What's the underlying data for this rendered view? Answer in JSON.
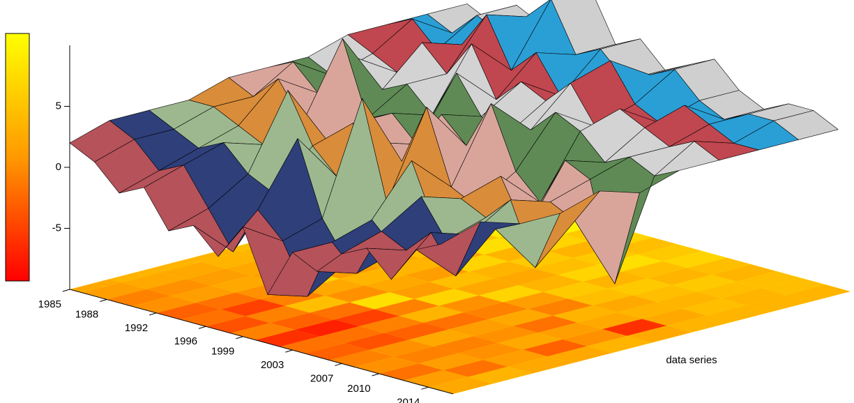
{
  "chart_data": {
    "type": "surface3d",
    "x": [
      1985,
      1987,
      1989,
      1991,
      1993,
      1995,
      1997,
      1999,
      2001,
      2003,
      2005,
      2007,
      2009,
      2011,
      2013,
      2015
    ],
    "xlim": [
      1985,
      2016
    ],
    "xticks": [
      1985,
      1988,
      1992,
      1996,
      1999,
      2003,
      2007,
      2010,
      2014
    ],
    "zlim": [
      -10,
      10
    ],
    "zticks": [
      -5,
      0,
      5
    ],
    "clim": [
      -9,
      10
    ],
    "colormap": [
      "#ff0000",
      "#ff9900",
      "#ffff00"
    ],
    "y_label": "data series",
    "series": [
      {
        "color": "#b5525a",
        "values": [
          2,
          1,
          -1,
          0,
          -3,
          -2,
          -4,
          -1,
          -6,
          -2,
          -3,
          -1,
          0,
          -2,
          1,
          2
        ]
      },
      {
        "color": "#2e3f7a",
        "values": [
          3,
          2,
          0,
          1,
          -2,
          -5,
          -1,
          -3,
          -7,
          -2,
          -4,
          0,
          -1,
          1,
          -2,
          3
        ]
      },
      {
        "color": "#9db88f",
        "values": [
          3,
          2,
          1,
          2,
          0,
          -1,
          4,
          -2,
          -5,
          -1,
          -3,
          2,
          -1,
          0,
          1,
          2
        ]
      },
      {
        "color": "#d98c3a",
        "values": [
          3,
          3,
          2,
          1,
          6,
          2,
          0,
          7,
          -1,
          3,
          -2,
          1,
          0,
          2,
          -3,
          2
        ]
      },
      {
        "color": "#d9a59b",
        "values": [
          4,
          3,
          5,
          2,
          1,
          3,
          2,
          1,
          6,
          0,
          -1,
          2,
          -2,
          1,
          0,
          3
        ]
      },
      {
        "color": "#5f8a55",
        "values": [
          4,
          5,
          3,
          8,
          2,
          3,
          1,
          4,
          2,
          6,
          1,
          -1,
          3,
          2,
          -6,
          2
        ]
      },
      {
        "color": "#d3d3d3",
        "values": [
          4,
          3,
          5,
          3,
          4,
          2,
          6,
          3,
          2,
          3,
          5,
          4,
          2,
          3,
          2,
          3
        ]
      },
      {
        "color": "#c0474f",
        "values": [
          5,
          4,
          3,
          6,
          4,
          7,
          3,
          5,
          4,
          6,
          3,
          5,
          4,
          3,
          4,
          3
        ]
      },
      {
        "color": "#2a9fd6",
        "values": [
          5,
          6,
          4,
          5,
          8,
          4,
          6,
          3,
          5,
          7,
          4,
          3,
          5,
          4,
          3,
          3
        ]
      },
      {
        "color": "#cfcfcf",
        "values": [
          5,
          4,
          6,
          5,
          7,
          9,
          5,
          6,
          4,
          5,
          6,
          4,
          3,
          4,
          4,
          3
        ]
      }
    ]
  }
}
